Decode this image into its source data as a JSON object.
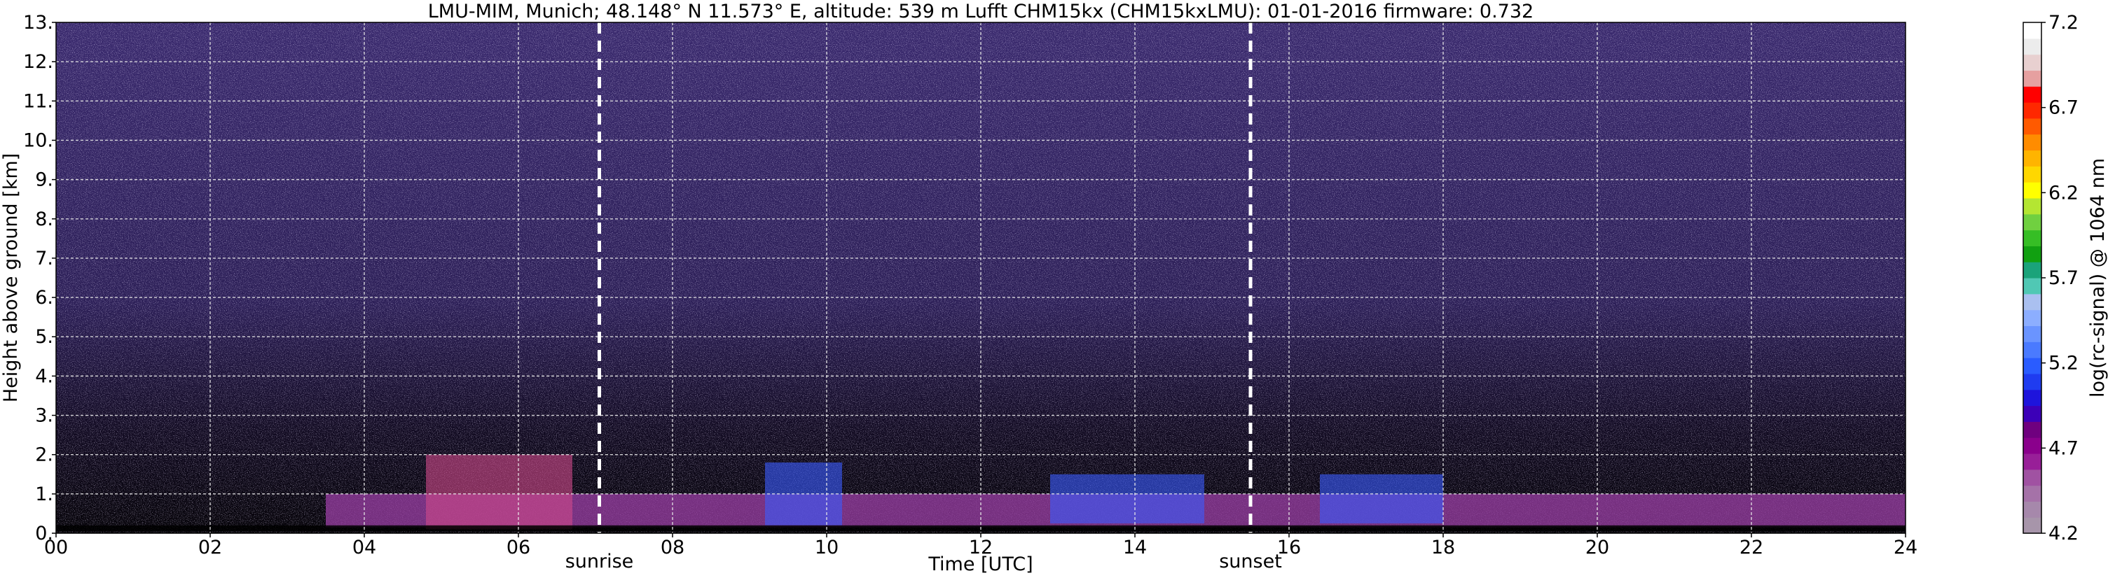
{
  "chart_data": {
    "type": "heatmap",
    "title": "LMU-MIM, Munich; 48.148° N 11.573° E, altitude: 539 m    Lufft CHM15kx (CHM15kxLMU): 01-01-2016    firmware: 0.732",
    "xlabel": "Time [UTC]",
    "ylabel": "Height above ground [km]",
    "xlim": [
      0,
      24
    ],
    "ylim": [
      0,
      13
    ],
    "x_ticks": [
      0,
      2,
      4,
      6,
      8,
      10,
      12,
      14,
      16,
      18,
      20,
      22,
      24
    ],
    "x_tick_labels": [
      "00",
      "02",
      "04",
      "06",
      "08",
      "10",
      "12",
      "14",
      "16",
      "18",
      "20",
      "22",
      "24"
    ],
    "y_ticks": [
      0,
      1,
      2,
      3,
      4,
      5,
      6,
      7,
      8,
      9,
      10,
      11,
      12,
      13
    ],
    "y_tick_labels": [
      "0.",
      "1.",
      "2.",
      "3.",
      "4.",
      "5.",
      "6.",
      "7.",
      "8.",
      "9.",
      "10.",
      "11.",
      "12.",
      "13."
    ],
    "grid": true,
    "markers": [
      {
        "label": "sunrise",
        "time": 7.05
      },
      {
        "label": "sunset",
        "time": 15.5
      }
    ],
    "colorbar": {
      "label": "log(rc-signal) @ 1064 nm",
      "range": [
        4.2,
        7.2
      ],
      "ticks": [
        4.2,
        4.7,
        5.2,
        5.7,
        6.2,
        6.7,
        7.2
      ],
      "tick_labels": [
        "4.2",
        "4.7",
        "5.2",
        "5.7",
        "6.2",
        "6.7",
        "7.2"
      ],
      "colors": [
        "#a795aa",
        "#a688ab",
        "#a572a8",
        "#a052a2",
        "#981f98",
        "#8a008c",
        "#6f007f",
        "#3c00b8",
        "#1e14dc",
        "#1f3cf0",
        "#2a5cff",
        "#4a7aff",
        "#6a94ff",
        "#8caeff",
        "#aac0f0",
        "#50c8b4",
        "#1aa37a",
        "#11a011",
        "#36be25",
        "#70d040",
        "#b4e632",
        "#ffff00",
        "#ffd700",
        "#ffb400",
        "#ff8c00",
        "#ff5a00",
        "#ff2800",
        "#ff0000",
        "#e6a0a0",
        "#e8d0d0",
        "#ececec",
        "#ffffff"
      ]
    },
    "regions": [
      {
        "feature": "boundary layer aerosol (purple)",
        "t_start": 3.5,
        "t_end": 24,
        "h_bottom": 0.15,
        "h_top": 1.0
      },
      {
        "feature": "low cloud / aerosol plumes",
        "t_start": 4.8,
        "t_end": 6.7,
        "h_bottom": 0.1,
        "h_top": 2.0
      },
      {
        "feature": "aerosol layer (blue)",
        "t_start": 9.2,
        "t_end": 10.2,
        "h_bottom": 0.2,
        "h_top": 1.8
      },
      {
        "feature": "aerosol layer (blue)",
        "t_start": 12.9,
        "t_end": 14.9,
        "h_bottom": 0.25,
        "h_top": 1.5
      },
      {
        "feature": "aerosol layer (blue)",
        "t_start": 16.4,
        "t_end": 18.0,
        "h_bottom": 0.25,
        "h_top": 1.5
      }
    ]
  }
}
